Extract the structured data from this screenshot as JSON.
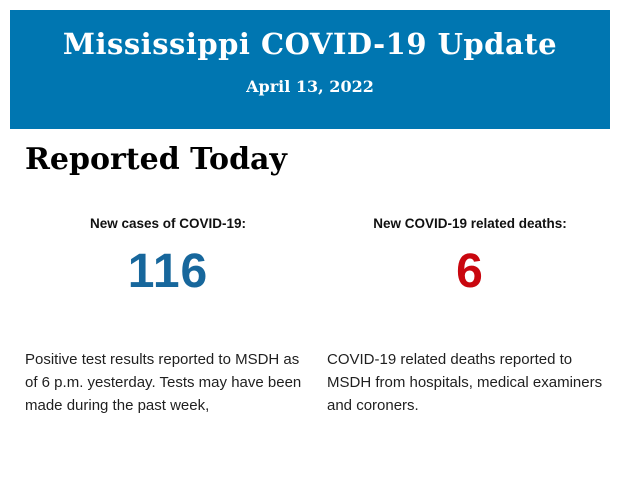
{
  "banner": {
    "title": "Mississippi COVID-19 Update",
    "date": "April 13, 2022",
    "background": "#0076B1",
    "text_color": "#FFFFFF"
  },
  "section": {
    "heading": "Reported Today"
  },
  "stats": [
    {
      "label": "New cases of COVID-19:",
      "value": "116",
      "value_color": "#17679C",
      "description": "Positive test results reported to MSDH as of 6 p.m. yesterday. Tests may have been made during the past week,"
    },
    {
      "label": "New COVID-19 related deaths:",
      "value": "6",
      "value_color": "#C9070F",
      "description": "COVID-19 related deaths reported to MSDH from hospitals, medical examiners and coroners."
    }
  ]
}
